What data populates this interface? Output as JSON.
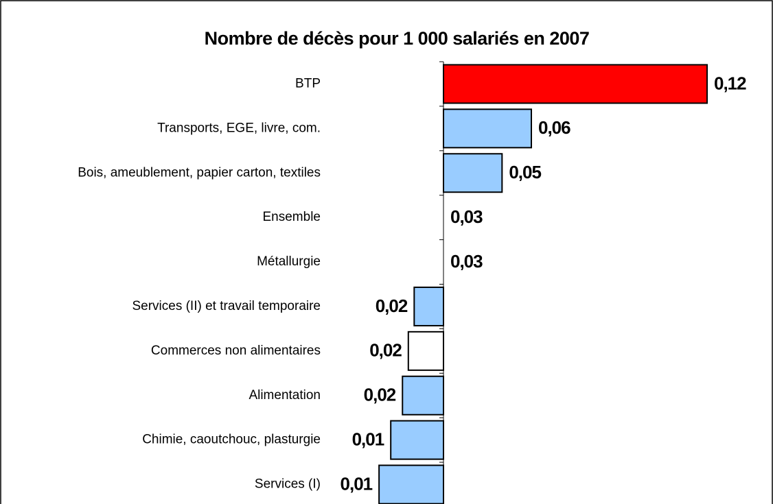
{
  "chart_data": {
    "type": "bar",
    "orientation": "horizontal",
    "title": "Nombre de décès pour 1 000 salariés en 2007",
    "categories": [
      "BTP",
      "Transports, EGE, livre, com.",
      "Bois, ameublement, papier carton, textiles",
      "Ensemble",
      "Métallurgie",
      "Services (II) et travail temporaire",
      "Commerces non alimentaires",
      "Alimentation",
      "Chimie, caoutchouc, plasturgie",
      "Services (I)"
    ],
    "values": [
      0.12,
      0.06,
      0.05,
      0.03,
      0.03,
      0.02,
      0.018,
      0.016,
      0.012,
      0.008
    ],
    "value_labels": [
      "0,12",
      "0,06",
      "0,05",
      "0,03",
      "0,03",
      "0,02",
      "0,02",
      "0,02",
      "0,01",
      "0,01"
    ],
    "colors": [
      "#ff0000",
      "#99ccff",
      "#99ccff",
      "#99ccff",
      "#99ccff",
      "#99ccff",
      "#ffffff",
      "#99ccff",
      "#99ccff",
      "#99ccff"
    ],
    "baseline": 0.03,
    "xlim": [
      0,
      0.12
    ]
  }
}
